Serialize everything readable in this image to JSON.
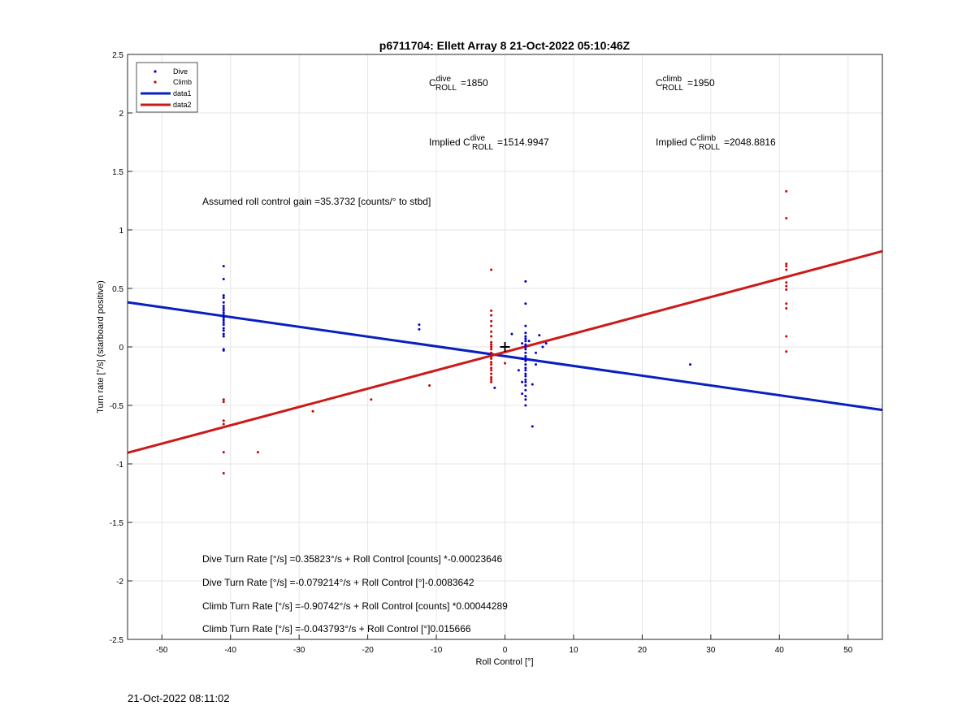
{
  "chart_data": {
    "type": "scatter",
    "title": "p6711704: Ellett Array 8 21-Oct-2022 05:10:46Z",
    "xlabel": "Roll Control [°]",
    "ylabel": "Turn rate [°/s] (starboard positive)",
    "xlim": [
      -55,
      55
    ],
    "ylim": [
      -2.5,
      2.5
    ],
    "grid": true,
    "legend_placement": "top-left",
    "xticks": [
      "-50",
      "-40",
      "-30",
      "-20",
      "-10",
      "0",
      "10",
      "20",
      "30",
      "40",
      "50"
    ],
    "yticks": [
      "-2.5",
      "-2",
      "-1.5",
      "-1",
      "-0.5",
      "0",
      "0.5",
      "1",
      "1.5",
      "2",
      "2.5"
    ],
    "xtick_values": [
      -50,
      -40,
      -30,
      -20,
      -10,
      0,
      10,
      20,
      30,
      40,
      50
    ],
    "ytick_values": [
      -2.5,
      -2,
      -1.5,
      -1,
      -0.5,
      0,
      0.5,
      1,
      1.5,
      2,
      2.5
    ],
    "legend": [
      "Dive",
      "Climb",
      "data1",
      "data2"
    ],
    "colors": {
      "dive": "#0000cc",
      "climb": "#cc0000",
      "line_dive": "#0a1fbf",
      "line_climb": "#cc1a1a"
    },
    "series": [
      {
        "name": "Dive",
        "kind": "points",
        "color_key": "dive",
        "points": [
          [
            -41,
            0.69
          ],
          [
            -41,
            0.58
          ],
          [
            -41,
            0.44
          ],
          [
            -41,
            0.42
          ],
          [
            -41,
            0.38
          ],
          [
            -41,
            0.35
          ],
          [
            -41,
            0.33
          ],
          [
            -41,
            0.31
          ],
          [
            -41,
            0.29
          ],
          [
            -41,
            0.27
          ],
          [
            -41,
            0.25
          ],
          [
            -41,
            0.23
          ],
          [
            -41,
            0.21
          ],
          [
            -41,
            0.19
          ],
          [
            -41,
            0.16
          ],
          [
            -41,
            0.14
          ],
          [
            -41,
            0.11
          ],
          [
            -41,
            0.09
          ],
          [
            -41,
            -0.02
          ],
          [
            -41,
            -0.03
          ],
          [
            -12.5,
            0.19
          ],
          [
            -12.5,
            0.15
          ],
          [
            -1.5,
            -0.35
          ],
          [
            1,
            0.11
          ],
          [
            2,
            -0.2
          ],
          [
            2.5,
            0.03
          ],
          [
            2.5,
            -0.1
          ],
          [
            2.5,
            -0.3
          ],
          [
            2.5,
            -0.4
          ],
          [
            3,
            0.56
          ],
          [
            3,
            0.37
          ],
          [
            3,
            0.18
          ],
          [
            3,
            0.12
          ],
          [
            3,
            0.09
          ],
          [
            3,
            0.07
          ],
          [
            3,
            0.05
          ],
          [
            3,
            0.02
          ],
          [
            3,
            0.0
          ],
          [
            3,
            -0.02
          ],
          [
            3,
            -0.05
          ],
          [
            3,
            -0.08
          ],
          [
            3,
            -0.1
          ],
          [
            3,
            -0.12
          ],
          [
            3,
            -0.15
          ],
          [
            3,
            -0.18
          ],
          [
            3,
            -0.2
          ],
          [
            3,
            -0.23
          ],
          [
            3,
            -0.25
          ],
          [
            3,
            -0.28
          ],
          [
            3,
            -0.3
          ],
          [
            3,
            -0.33
          ],
          [
            3,
            -0.37
          ],
          [
            3,
            -0.42
          ],
          [
            3,
            -0.45
          ],
          [
            3,
            -0.5
          ],
          [
            3.5,
            0.05
          ],
          [
            4,
            -0.32
          ],
          [
            4,
            -0.68
          ],
          [
            4.5,
            -0.05
          ],
          [
            4.5,
            -0.15
          ],
          [
            5,
            0.1
          ],
          [
            5.5,
            0.0
          ],
          [
            6,
            0.03
          ],
          [
            27,
            -0.15
          ]
        ]
      },
      {
        "name": "Climb",
        "kind": "points",
        "color_key": "climb",
        "points": [
          [
            -41,
            -0.45
          ],
          [
            -41,
            -0.47
          ],
          [
            -41,
            -0.63
          ],
          [
            -41,
            -0.66
          ],
          [
            -41,
            -0.9
          ],
          [
            -41,
            -1.08
          ],
          [
            -36,
            -0.9
          ],
          [
            -28,
            -0.55
          ],
          [
            -19.5,
            -0.45
          ],
          [
            -11,
            -0.33
          ],
          [
            -2,
            0.66
          ],
          [
            -2,
            0.31
          ],
          [
            -2,
            0.27
          ],
          [
            -2,
            0.22
          ],
          [
            -2,
            0.18
          ],
          [
            -2,
            0.13
          ],
          [
            -2,
            0.09
          ],
          [
            -2,
            0.04
          ],
          [
            -2,
            0.02
          ],
          [
            -2,
            0.0
          ],
          [
            -2,
            -0.02
          ],
          [
            -2,
            -0.05
          ],
          [
            -2,
            -0.08
          ],
          [
            -2,
            -0.1
          ],
          [
            -2,
            -0.13
          ],
          [
            -2,
            -0.15
          ],
          [
            -2,
            -0.18
          ],
          [
            -2,
            -0.2
          ],
          [
            -2,
            -0.23
          ],
          [
            -2,
            -0.26
          ],
          [
            -2,
            -0.28
          ],
          [
            -2,
            -0.3
          ],
          [
            0,
            -0.14
          ],
          [
            41,
            1.33
          ],
          [
            41,
            1.1
          ],
          [
            41,
            0.71
          ],
          [
            41,
            0.69
          ],
          [
            41,
            0.66
          ],
          [
            41,
            0.55
          ],
          [
            41,
            0.52
          ],
          [
            41,
            0.49
          ],
          [
            41,
            0.37
          ],
          [
            41,
            0.33
          ],
          [
            41,
            0.09
          ],
          [
            41,
            -0.04
          ]
        ]
      },
      {
        "name": "data1",
        "kind": "line",
        "color_key": "line_dive",
        "x": [
          -55,
          55
        ],
        "y": [
          0.381,
          -0.539
        ]
      },
      {
        "name": "data2",
        "kind": "line",
        "color_key": "line_climb",
        "x": [
          -55,
          55
        ],
        "y": [
          -0.905,
          0.818
        ]
      }
    ],
    "marker": {
      "x": 0,
      "y": 0,
      "symbol": "+"
    },
    "annotations": {
      "c_dive_base": "C",
      "c_dive_sup": "dive",
      "c_dive_sub": "ROLL",
      "c_dive_value": "=1850",
      "c_climb_base": "C",
      "c_climb_sup": "climb",
      "c_climb_sub": "ROLL",
      "c_climb_value": "=1950",
      "implied_dive_prefix": "Implied C",
      "implied_dive_sup": "dive",
      "implied_dive_sub": "ROLL",
      "implied_dive_value": "=1514.9947",
      "implied_climb_prefix": "Implied C",
      "implied_climb_sup": "climb",
      "implied_climb_sub": "ROLL",
      "implied_climb_value": "=2048.8816",
      "gain": "Assumed roll control gain =35.3732 [counts/° to stbd]",
      "eq1": "Dive Turn Rate [°/s] =0.35823°/s + Roll Control [counts] *-0.00023646",
      "eq2": "Dive Turn Rate [°/s] =-0.079214°/s + Roll Control [°]-0.0083642",
      "eq3": "Climb Turn Rate [°/s] =-0.90742°/s + Roll Control [counts] *0.00044289",
      "eq4": "Climb Turn Rate [°/s] =-0.043793°/s + Roll Control [°]0.015666"
    }
  },
  "footer_timestamp": "21-Oct-2022 08:11:02"
}
